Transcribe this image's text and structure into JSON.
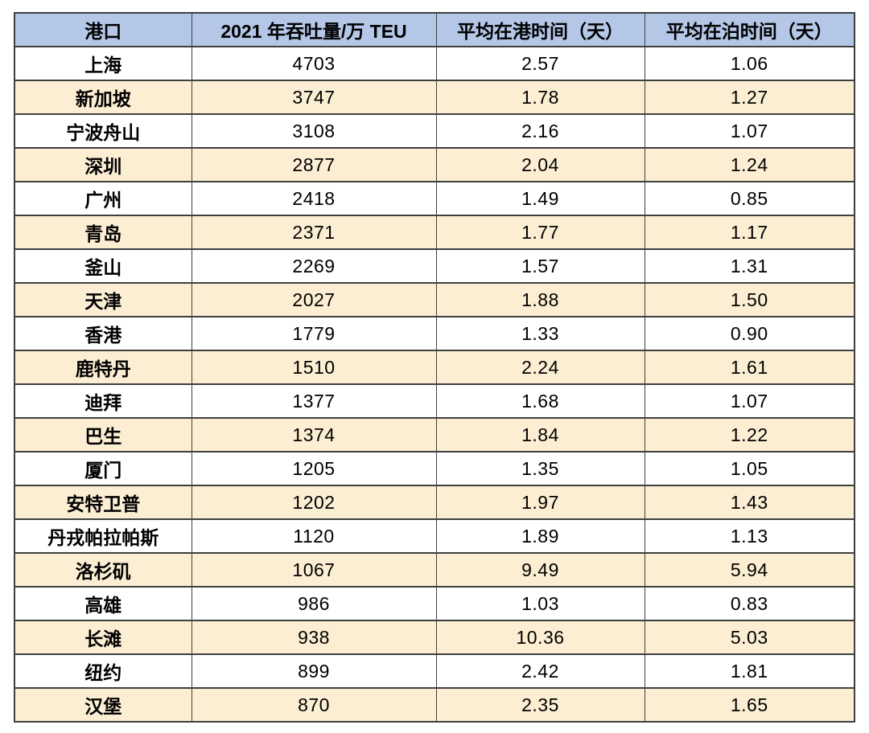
{
  "colors": {
    "header_bg": "#B4C7E7",
    "alt_row_bg": "#FCEED3",
    "border": "#3F3F3F",
    "text": "#000000"
  },
  "chart_data": {
    "type": "table",
    "title": "",
    "columns": [
      "港口",
      "2021 年吞吐量/万 TEU",
      "平均在港时间（天）",
      "平均在泊时间（天）"
    ],
    "rows": [
      [
        "上海",
        "4703",
        "2.57",
        "1.06"
      ],
      [
        "新加坡",
        "3747",
        "1.78",
        "1.27"
      ],
      [
        "宁波舟山",
        "3108",
        "2.16",
        "1.07"
      ],
      [
        "深圳",
        "2877",
        "2.04",
        "1.24"
      ],
      [
        "广州",
        "2418",
        "1.49",
        "0.85"
      ],
      [
        "青岛",
        "2371",
        "1.77",
        "1.17"
      ],
      [
        "釜山",
        "2269",
        "1.57",
        "1.31"
      ],
      [
        "天津",
        "2027",
        "1.88",
        "1.50"
      ],
      [
        "香港",
        "1779",
        "1.33",
        "0.90"
      ],
      [
        "鹿特丹",
        "1510",
        "2.24",
        "1.61"
      ],
      [
        "迪拜",
        "1377",
        "1.68",
        "1.07"
      ],
      [
        "巴生",
        "1374",
        "1.84",
        "1.22"
      ],
      [
        "厦门",
        "1205",
        "1.35",
        "1.05"
      ],
      [
        "安特卫普",
        "1202",
        "1.97",
        "1.43"
      ],
      [
        "丹戎帕拉帕斯",
        "1120",
        "1.89",
        "1.13"
      ],
      [
        "洛杉矶",
        "1067",
        "9.49",
        "5.94"
      ],
      [
        "高雄",
        "986",
        "1.03",
        "0.83"
      ],
      [
        "长滩",
        "938",
        "10.36",
        "5.03"
      ],
      [
        "纽约",
        "899",
        "2.42",
        "1.81"
      ],
      [
        "汉堡",
        "870",
        "2.35",
        "1.65"
      ]
    ]
  }
}
